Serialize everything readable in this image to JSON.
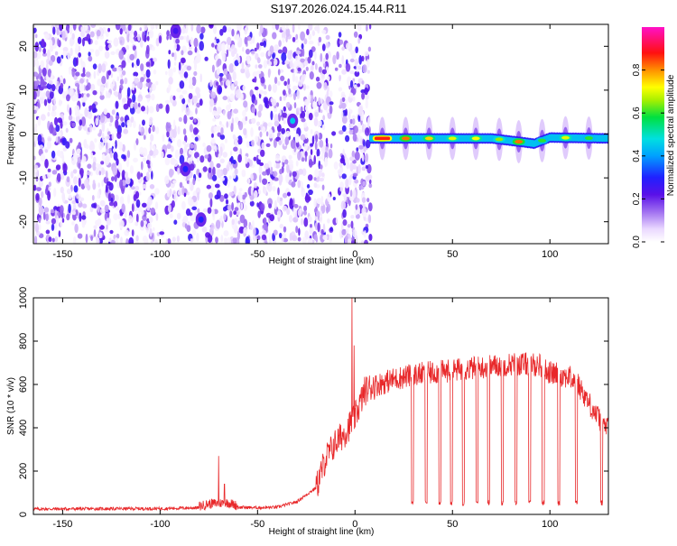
{
  "title": "S197.2026.024.15.44.R11",
  "colors": {
    "line": "#e8282a",
    "axis": "#000000",
    "background": "#ffffff"
  },
  "chart_data": [
    {
      "type": "heatmap",
      "xlabel": "Height of straight line (km)",
      "ylabel": "Frequency (Hz)",
      "xlim": [
        -165,
        130
      ],
      "ylim": [
        -25,
        25
      ],
      "xticks": [
        -150,
        -100,
        -50,
        0,
        50,
        100
      ],
      "xtick_labels": [
        "-150",
        "-100",
        "-50",
        "0",
        "50",
        "100"
      ],
      "yticks": [
        -20,
        -10,
        0,
        10,
        20
      ],
      "ytick_labels": [
        "-20",
        "-10",
        "0",
        "10",
        "20"
      ],
      "colorbar": {
        "label": "Normalized spectral amplitude",
        "range": [
          0,
          1
        ],
        "ticks": [
          0.0,
          0.2,
          0.4,
          0.6,
          0.8
        ],
        "tick_labels": [
          "0.0",
          "0.2",
          "0.4",
          "0.6",
          "0.8"
        ]
      },
      "noise_region_km": [
        -165,
        8
      ],
      "carrier": {
        "start_km": 8,
        "end_km": 130,
        "frequency_hz": [
          [
            8,
            -1
          ],
          [
            40,
            -1
          ],
          [
            70,
            -1
          ],
          [
            85,
            -1.8
          ],
          [
            92,
            -2.2
          ],
          [
            100,
            -0.8
          ],
          [
            130,
            -1
          ]
        ],
        "peaks": [
          {
            "km": 14,
            "amp": 0.85
          },
          {
            "km": 26,
            "amp": 0.82
          },
          {
            "km": 38,
            "amp": 0.75
          },
          {
            "km": 50,
            "amp": 0.7
          },
          {
            "km": 62,
            "amp": 0.72
          },
          {
            "km": 74,
            "amp": 0.65
          },
          {
            "km": 84,
            "amp": 0.82
          },
          {
            "km": 96,
            "amp": 0.6
          },
          {
            "km": 108,
            "amp": 0.7
          },
          {
            "km": 120,
            "amp": 0.6
          }
        ]
      },
      "hotspots": [
        {
          "km": -32,
          "hz": 3,
          "amp": 0.45
        },
        {
          "km": -79,
          "hz": -19.5,
          "amp": 0.3
        },
        {
          "km": -87,
          "hz": -8,
          "amp": 0.3
        },
        {
          "km": -92,
          "hz": 23.5,
          "amp": 0.25
        }
      ]
    },
    {
      "type": "line",
      "xlabel": "Height of straight line (km)",
      "ylabel": "SNR (10 * v/v)",
      "xlim": [
        -165,
        130
      ],
      "ylim": [
        0,
        1000
      ],
      "xticks": [
        -150,
        -100,
        -50,
        0,
        50,
        100
      ],
      "xtick_labels": [
        "-150",
        "-100",
        "-50",
        "0",
        "50",
        "100"
      ],
      "yticks": [
        0,
        200,
        400,
        600,
        800,
        1000
      ],
      "ytick_labels": [
        "0",
        "200",
        "400",
        "600",
        "800",
        "1000"
      ],
      "series": [
        {
          "name": "SNR",
          "baseline_points": [
            [
              -165,
              22
            ],
            [
              -100,
              24
            ],
            [
              -80,
              28
            ],
            [
              -75,
              40
            ],
            [
              -65,
              45
            ],
            [
              -60,
              30
            ],
            [
              -50,
              28
            ],
            [
              -40,
              30
            ],
            [
              -30,
              55
            ],
            [
              -20,
              120
            ],
            [
              -15,
              260
            ],
            [
              -10,
              330
            ],
            [
              -5,
              380
            ],
            [
              0,
              450
            ],
            [
              5,
              570
            ],
            [
              10,
              600
            ],
            [
              20,
              630
            ],
            [
              30,
              650
            ],
            [
              40,
              660
            ],
            [
              50,
              670
            ],
            [
              60,
              680
            ],
            [
              70,
              690
            ],
            [
              80,
              700
            ],
            [
              90,
              700
            ],
            [
              95,
              695
            ],
            [
              100,
              660
            ],
            [
              105,
              650
            ],
            [
              110,
              640
            ],
            [
              115,
              600
            ],
            [
              120,
              520
            ],
            [
              125,
              450
            ],
            [
              130,
              400
            ]
          ],
          "spikes": [
            [
              -70,
              270
            ],
            [
              -67,
              140
            ],
            [
              -1.5,
              1000
            ],
            [
              -0.5,
              780
            ]
          ],
          "dropouts": [
            29,
            36,
            43,
            49,
            55,
            62,
            68,
            75,
            82,
            89,
            96,
            104,
            113,
            126
          ]
        }
      ]
    }
  ]
}
